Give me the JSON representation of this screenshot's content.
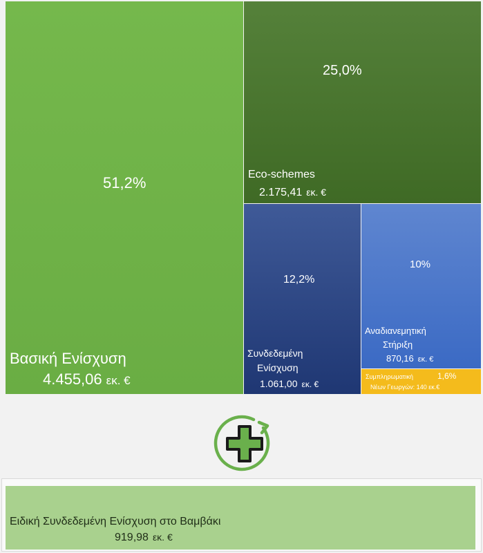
{
  "chart_data": {
    "type": "treemap",
    "unit": "εκ. €",
    "tiles": [
      {
        "key": "basic",
        "percent_label": "51,2%",
        "label_lines": [
          "Βασική Ενίσχυση"
        ],
        "amount": "4.455,06",
        "unit": "εκ. €",
        "percent": 51.2,
        "color": "#70b347"
      },
      {
        "key": "eco",
        "percent_label": "25,0%",
        "label_lines": [
          "Eco-schemes"
        ],
        "amount": "2.175,41",
        "unit": "εκ. €",
        "percent": 25.0,
        "color": "#4a752f"
      },
      {
        "key": "coupled",
        "percent_label": "12,2%",
        "label_lines": [
          "Συνδεδεμένη",
          "Ενίσχυση"
        ],
        "amount": "1.061,00",
        "unit": "εκ. €",
        "percent": 12.2,
        "color": "#2b4582"
      },
      {
        "key": "redis",
        "percent_label": "10%",
        "label_lines": [
          "Αναδιανεμητική",
          "Στήριξη"
        ],
        "amount": "870,16",
        "unit": "εκ. €",
        "percent": 10,
        "color": "#4a77c9"
      },
      {
        "key": "young",
        "percent_label": "1,6%",
        "label_lines": [
          "Συμπληρωματική",
          "Νέων Γεωργών: 140 εκ.€"
        ],
        "percent": 1.6,
        "color": "#f4bb1c"
      }
    ],
    "extra": {
      "label": "Ειδική Συνδεδεμένη Ενίσχυση στο Βαμβάκι",
      "amount": "919,98",
      "unit": "εκ. €",
      "color": "#a9d18e"
    },
    "icon": "plus-cycle-icon"
  }
}
